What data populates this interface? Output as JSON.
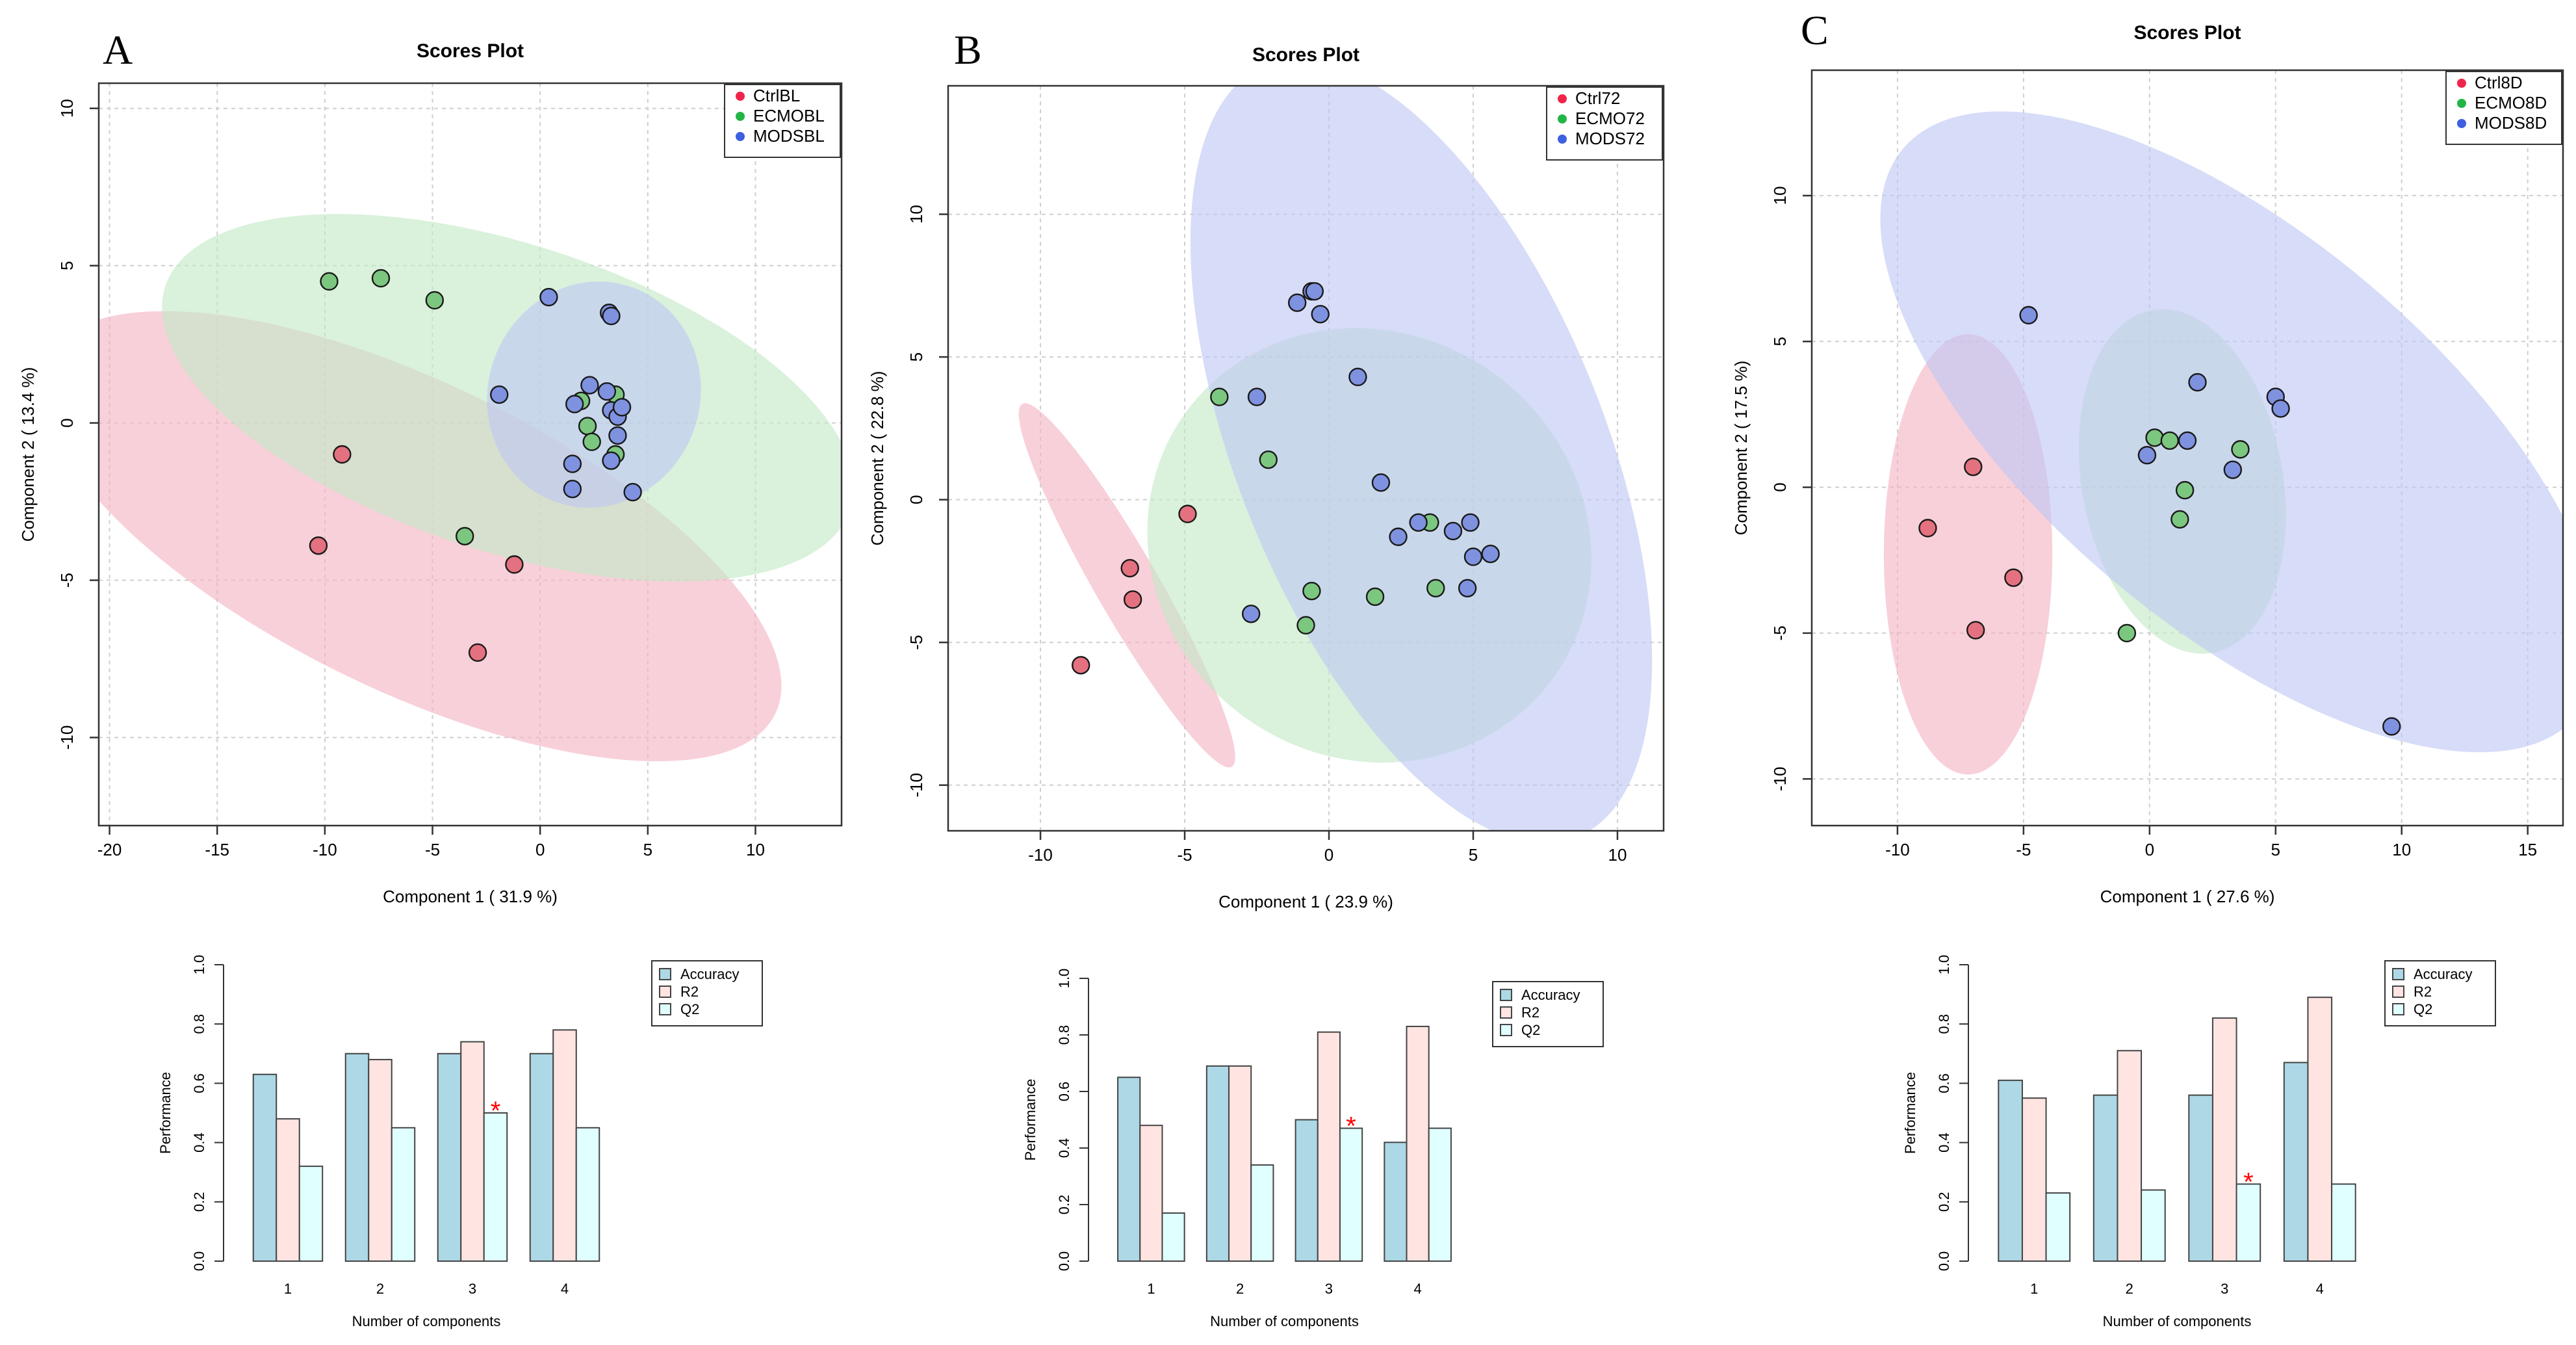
{
  "colors": {
    "ctrl": "#f0244a",
    "ecmo": "#22b546",
    "mods": "#3d5fe0",
    "ctrl_ellipse": "#f3b3c1",
    "ecmo_ellipse": "#c4e8c6",
    "mods_ellipse": "#bfc6f4",
    "ctrl_point": "#e4717f",
    "ecmo_point": "#7cc77f",
    "mods_point": "#7f92e0",
    "accuracy": "#add8e6",
    "r2": "#ffe4e1",
    "q2": "#e0ffff",
    "star": "#ff0000"
  },
  "chart_data": [
    {
      "panel": "A",
      "type": "scatter",
      "title": "Scores Plot",
      "xlabel": "Component 1 ( 31.9 %)",
      "ylabel": "Component 2 ( 13.4 %)",
      "xlim": [
        -20.5,
        14
      ],
      "ylim": [
        -12.8,
        10.8
      ],
      "xticks": [
        -20,
        -15,
        -10,
        -5,
        0,
        5,
        10
      ],
      "yticks": [
        -10,
        -5,
        0,
        5,
        10
      ],
      "grid": true,
      "legend": [
        {
          "label": "CtrlBL",
          "group": "ctrl"
        },
        {
          "label": "ECMOBL",
          "group": "ecmo"
        },
        {
          "label": "MODSBL",
          "group": "mods"
        }
      ],
      "ellipses": [
        {
          "group": "ctrl",
          "cx": -6,
          "cy": -3.6,
          "rx": 15.3,
          "ry": 5.8,
          "angle": -26
        },
        {
          "group": "ecmo",
          "cx": -1.5,
          "cy": 0.8,
          "rx": 13.6,
          "ry": 5.8,
          "angle": -18
        },
        {
          "group": "mods",
          "cx": 2.5,
          "cy": 0.9,
          "rx": 4.0,
          "ry": 4.3,
          "angle": -20
        }
      ],
      "points": [
        {
          "group": "ctrl",
          "x": -9.2,
          "y": -1.0
        },
        {
          "group": "ctrl",
          "x": -10.3,
          "y": -3.9
        },
        {
          "group": "ctrl",
          "x": -1.2,
          "y": -4.5
        },
        {
          "group": "ctrl",
          "x": -2.9,
          "y": -7.3
        },
        {
          "group": "ecmo",
          "x": -9.8,
          "y": 4.5
        },
        {
          "group": "ecmo",
          "x": -7.4,
          "y": 4.6
        },
        {
          "group": "ecmo",
          "x": -4.9,
          "y": 3.9
        },
        {
          "group": "ecmo",
          "x": -3.5,
          "y": -3.6
        },
        {
          "group": "ecmo",
          "x": 1.9,
          "y": 0.7
        },
        {
          "group": "ecmo",
          "x": 2.2,
          "y": -0.1
        },
        {
          "group": "ecmo",
          "x": 2.4,
          "y": -0.6
        },
        {
          "group": "ecmo",
          "x": 3.5,
          "y": 0.9
        },
        {
          "group": "ecmo",
          "x": 3.5,
          "y": -1.0
        },
        {
          "group": "mods",
          "x": 0.4,
          "y": 4.0
        },
        {
          "group": "mods",
          "x": 3.2,
          "y": 3.5
        },
        {
          "group": "mods",
          "x": 3.3,
          "y": 3.4
        },
        {
          "group": "mods",
          "x": -1.9,
          "y": 0.9
        },
        {
          "group": "mods",
          "x": 1.6,
          "y": 0.6
        },
        {
          "group": "mods",
          "x": 2.3,
          "y": 1.2
        },
        {
          "group": "mods",
          "x": 3.1,
          "y": 1.0
        },
        {
          "group": "mods",
          "x": 3.3,
          "y": 0.4
        },
        {
          "group": "mods",
          "x": 3.6,
          "y": 0.2
        },
        {
          "group": "mods",
          "x": 3.8,
          "y": 0.5
        },
        {
          "group": "mods",
          "x": 3.6,
          "y": -0.4
        },
        {
          "group": "mods",
          "x": 1.5,
          "y": -1.3
        },
        {
          "group": "mods",
          "x": 3.3,
          "y": -1.2
        },
        {
          "group": "mods",
          "x": 1.5,
          "y": -2.1
        },
        {
          "group": "mods",
          "x": 4.3,
          "y": -2.2
        }
      ]
    },
    {
      "panel": "B",
      "type": "scatter",
      "title": "Scores Plot",
      "xlabel": "Component 1 ( 23.9 %)",
      "ylabel": "Component 2 ( 22.8 %)",
      "xlim": [
        -13.2,
        11.6
      ],
      "ylim": [
        -11.6,
        14.5
      ],
      "xticks": [
        -10,
        -5,
        0,
        5,
        10
      ],
      "yticks": [
        -10,
        -5,
        0,
        5,
        10
      ],
      "grid": true,
      "legend": [
        {
          "label": "Ctrl72",
          "group": "ctrl"
        },
        {
          "label": "ECMO72",
          "group": "ecmo"
        },
        {
          "label": "MODS72",
          "group": "mods"
        }
      ],
      "ellipses": [
        {
          "group": "ctrl",
          "cx": -7,
          "cy": -3.0,
          "rx": 7.3,
          "ry": 1.1,
          "angle": -60
        },
        {
          "group": "ecmo",
          "cx": 1.4,
          "cy": -1.6,
          "rx": 7.9,
          "ry": 7.4,
          "angle": -35
        },
        {
          "group": "mods",
          "cx": 3.2,
          "cy": 1.7,
          "rx": 14.5,
          "ry": 6.4,
          "angle": -68
        }
      ],
      "points": [
        {
          "group": "ctrl",
          "x": -4.9,
          "y": -0.5
        },
        {
          "group": "ctrl",
          "x": -6.9,
          "y": -2.4
        },
        {
          "group": "ctrl",
          "x": -6.8,
          "y": -3.5
        },
        {
          "group": "ctrl",
          "x": -8.6,
          "y": -5.8
        },
        {
          "group": "ecmo",
          "x": -3.8,
          "y": 3.6
        },
        {
          "group": "ecmo",
          "x": -2.1,
          "y": 1.4
        },
        {
          "group": "ecmo",
          "x": 3.5,
          "y": -0.8
        },
        {
          "group": "ecmo",
          "x": -0.6,
          "y": -3.2
        },
        {
          "group": "ecmo",
          "x": 1.6,
          "y": -3.4
        },
        {
          "group": "ecmo",
          "x": 3.7,
          "y": -3.1
        },
        {
          "group": "ecmo",
          "x": -0.8,
          "y": -4.4
        },
        {
          "group": "mods",
          "x": -1.1,
          "y": 6.9
        },
        {
          "group": "mods",
          "x": -0.6,
          "y": 7.3
        },
        {
          "group": "mods",
          "x": -0.5,
          "y": 7.3
        },
        {
          "group": "mods",
          "x": -0.3,
          "y": 6.5
        },
        {
          "group": "mods",
          "x": 1.0,
          "y": 4.3
        },
        {
          "group": "mods",
          "x": -2.5,
          "y": 3.6
        },
        {
          "group": "mods",
          "x": 1.8,
          "y": 0.6
        },
        {
          "group": "mods",
          "x": 3.1,
          "y": -0.8
        },
        {
          "group": "mods",
          "x": 4.9,
          "y": -0.8
        },
        {
          "group": "mods",
          "x": 4.3,
          "y": -1.1
        },
        {
          "group": "mods",
          "x": 2.4,
          "y": -1.3
        },
        {
          "group": "mods",
          "x": 5.0,
          "y": -2.0
        },
        {
          "group": "mods",
          "x": 5.6,
          "y": -1.9
        },
        {
          "group": "mods",
          "x": 4.8,
          "y": -3.1
        },
        {
          "group": "mods",
          "x": -2.7,
          "y": -4.0
        }
      ]
    },
    {
      "panel": "C",
      "type": "scatter",
      "title": "Scores Plot",
      "xlabel": "Component 1 ( 27.6 %)",
      "ylabel": "Component 2 ( 17.5 %)",
      "xlim": [
        -13.4,
        16.4
      ],
      "ylim": [
        -11.6,
        14.3
      ],
      "xticks": [
        -10,
        -5,
        0,
        5,
        10,
        15
      ],
      "yticks": [
        -10,
        -5,
        0,
        5,
        10
      ],
      "grid": true,
      "legend": [
        {
          "label": "Ctrl8D",
          "group": "ctrl"
        },
        {
          "label": "ECMO8D",
          "group": "ecmo"
        },
        {
          "label": "MODS8D",
          "group": "mods"
        }
      ],
      "ellipses": [
        {
          "group": "ctrl",
          "cx": -7.2,
          "cy": -2.3,
          "rx": 3.1,
          "ry": 8.1,
          "angle": 0
        },
        {
          "group": "ecmo",
          "cx": 1.3,
          "cy": 0.2,
          "rx": 3.7,
          "ry": 6.4,
          "angle": 10
        },
        {
          "group": "mods",
          "cx": 3.6,
          "cy": 1.9,
          "rx": 16.2,
          "ry": 7.2,
          "angle": -40
        }
      ],
      "points": [
        {
          "group": "ctrl",
          "x": -7.0,
          "y": 0.7
        },
        {
          "group": "ctrl",
          "x": -8.8,
          "y": -1.4
        },
        {
          "group": "ctrl",
          "x": -5.4,
          "y": -3.1
        },
        {
          "group": "ctrl",
          "x": -6.9,
          "y": -4.9
        },
        {
          "group": "ecmo",
          "x": 0.2,
          "y": 1.7
        },
        {
          "group": "ecmo",
          "x": 0.8,
          "y": 1.6
        },
        {
          "group": "ecmo",
          "x": 3.6,
          "y": 1.3
        },
        {
          "group": "ecmo",
          "x": 1.4,
          "y": -0.1
        },
        {
          "group": "ecmo",
          "x": 1.2,
          "y": -1.1
        },
        {
          "group": "ecmo",
          "x": -0.9,
          "y": -5.0
        },
        {
          "group": "mods",
          "x": -4.8,
          "y": 5.9
        },
        {
          "group": "mods",
          "x": 1.9,
          "y": 3.6
        },
        {
          "group": "mods",
          "x": 5.0,
          "y": 3.1
        },
        {
          "group": "mods",
          "x": 5.2,
          "y": 2.7
        },
        {
          "group": "mods",
          "x": 1.5,
          "y": 1.6
        },
        {
          "group": "mods",
          "x": -0.1,
          "y": 1.1
        },
        {
          "group": "mods",
          "x": 3.3,
          "y": 0.6
        },
        {
          "group": "mods",
          "x": 9.6,
          "y": -8.2
        }
      ]
    },
    {
      "panel": "A",
      "type": "bar",
      "title": "",
      "xlabel": "Number of components",
      "ylabel": "Performance",
      "categories": [
        "1",
        "2",
        "3",
        "4"
      ],
      "ylim": [
        0,
        1.0
      ],
      "yticks": [
        "0.0",
        "0.2",
        "0.4",
        "0.6",
        "0.8",
        "1.0"
      ],
      "series": [
        {
          "name": "Accuracy",
          "key": "accuracy",
          "values": [
            0.63,
            0.7,
            0.7,
            0.7
          ]
        },
        {
          "name": "R2",
          "key": "r2",
          "values": [
            0.48,
            0.68,
            0.74,
            0.78
          ]
        },
        {
          "name": "Q2",
          "key": "q2",
          "values": [
            0.32,
            0.45,
            0.5,
            0.45
          ]
        }
      ],
      "star": {
        "category_index": 2,
        "series": "Q2",
        "symbol": "*"
      }
    },
    {
      "panel": "B",
      "type": "bar",
      "title": "",
      "xlabel": "Number of components",
      "ylabel": "Performance",
      "categories": [
        "1",
        "2",
        "3",
        "4"
      ],
      "ylim": [
        0,
        1.0
      ],
      "yticks": [
        "0.0",
        "0.2",
        "0.4",
        "0.6",
        "0.8",
        "1.0"
      ],
      "series": [
        {
          "name": "Accuracy",
          "key": "accuracy",
          "values": [
            0.65,
            0.69,
            0.5,
            0.42
          ]
        },
        {
          "name": "R2",
          "key": "r2",
          "values": [
            0.48,
            0.69,
            0.81,
            0.83
          ]
        },
        {
          "name": "Q2",
          "key": "q2",
          "values": [
            0.17,
            0.34,
            0.47,
            0.47
          ]
        }
      ],
      "star": {
        "category_index": 2,
        "series": "Q2",
        "symbol": "*"
      }
    },
    {
      "panel": "C",
      "type": "bar",
      "title": "",
      "xlabel": "Number of components",
      "ylabel": "Performance",
      "categories": [
        "1",
        "2",
        "3",
        "4"
      ],
      "ylim": [
        0,
        1.0
      ],
      "yticks": [
        "0.0",
        "0.2",
        "0.4",
        "0.6",
        "0.8",
        "1.0"
      ],
      "series": [
        {
          "name": "Accuracy",
          "key": "accuracy",
          "values": [
            0.61,
            0.56,
            0.56,
            0.67
          ]
        },
        {
          "name": "R2",
          "key": "r2",
          "values": [
            0.55,
            0.71,
            0.82,
            0.89
          ]
        },
        {
          "name": "Q2",
          "key": "q2",
          "values": [
            0.23,
            0.24,
            0.26,
            0.26
          ]
        }
      ],
      "star": {
        "category_index": 2,
        "series": "Q2",
        "symbol": "*"
      }
    }
  ]
}
